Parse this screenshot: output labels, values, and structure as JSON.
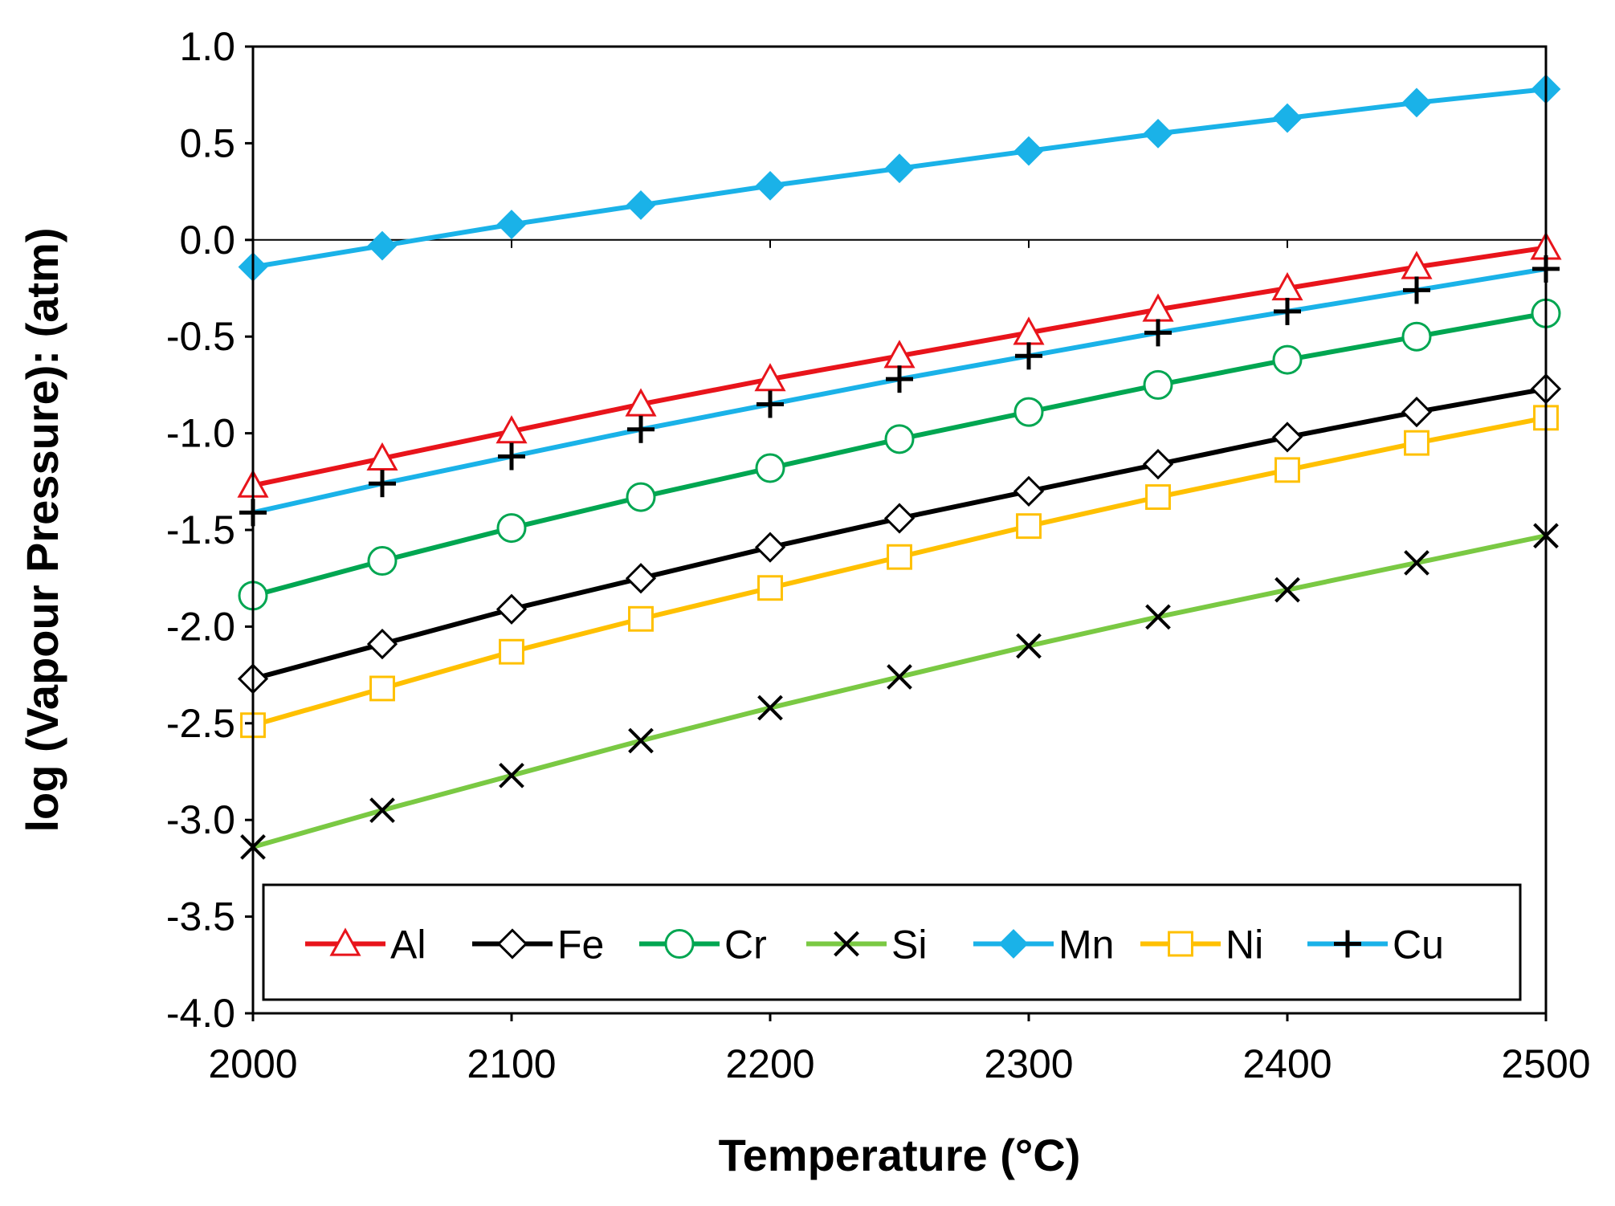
{
  "chart_data": {
    "type": "line",
    "title": "",
    "xlabel": "Temperature (°C)",
    "ylabel": "log (Vapour Pressure): (atm)",
    "xlim": [
      2000,
      2500
    ],
    "ylim": [
      -4.0,
      1.0
    ],
    "x_ticks": [
      2000,
      2100,
      2200,
      2300,
      2400,
      2500
    ],
    "x_tick_labels": [
      "2000",
      "2100",
      "2200",
      "2300",
      "2400",
      "2500"
    ],
    "y_ticks": [
      1.0,
      0.5,
      0.0,
      -0.5,
      -1.0,
      -1.5,
      -2.0,
      -2.5,
      -3.0,
      -3.5,
      -4.0
    ],
    "y_tick_labels": [
      "1.0",
      "0.5",
      "0.0",
      "-0.5",
      "-1.0",
      "-1.5",
      "-2.0",
      "-2.5",
      "-3.0",
      "-3.5",
      "-4.0"
    ],
    "grid": "horizontal line at y=0",
    "legend_position": "bottom, inside plot",
    "x": [
      2000,
      2050,
      2100,
      2150,
      2200,
      2250,
      2300,
      2350,
      2400,
      2450,
      2500
    ],
    "series": [
      {
        "name": "Al",
        "color": "#e8141b",
        "marker": "triangle-open",
        "values": [
          -1.27,
          -1.13,
          -0.99,
          -0.85,
          -0.72,
          -0.6,
          -0.48,
          -0.36,
          -0.25,
          -0.14,
          -0.04
        ]
      },
      {
        "name": "Fe",
        "color": "#000000",
        "marker": "diamond-open",
        "values": [
          -2.27,
          -2.09,
          -1.91,
          -1.75,
          -1.59,
          -1.44,
          -1.3,
          -1.16,
          -1.02,
          -0.89,
          -0.77
        ]
      },
      {
        "name": "Cr",
        "color": "#00a651",
        "marker": "circle-open",
        "values": [
          -1.84,
          -1.66,
          -1.49,
          -1.33,
          -1.18,
          -1.03,
          -0.89,
          -0.75,
          -0.62,
          -0.5,
          -0.38
        ]
      },
      {
        "name": "Si",
        "color": "#7ac943",
        "marker": "x",
        "values": [
          -3.14,
          -2.95,
          -2.77,
          -2.59,
          -2.42,
          -2.26,
          -2.1,
          -1.95,
          -1.81,
          -1.67,
          -1.53
        ]
      },
      {
        "name": "Mn",
        "color": "#1ab2e8",
        "marker": "diamond-filled",
        "values": [
          -0.14,
          -0.03,
          0.08,
          0.18,
          0.28,
          0.37,
          0.46,
          0.55,
          0.63,
          0.71,
          0.78
        ]
      },
      {
        "name": "Ni",
        "color": "#ffc000",
        "marker": "square-open",
        "values": [
          -2.51,
          -2.32,
          -2.13,
          -1.96,
          -1.8,
          -1.64,
          -1.48,
          -1.33,
          -1.19,
          -1.05,
          -0.92
        ]
      },
      {
        "name": "Cu",
        "color": "#1ab2e8",
        "marker": "plus",
        "values": [
          -1.41,
          -1.26,
          -1.12,
          -0.98,
          -0.85,
          -0.72,
          -0.6,
          -0.48,
          -0.37,
          -0.26,
          -0.15
        ]
      }
    ]
  }
}
